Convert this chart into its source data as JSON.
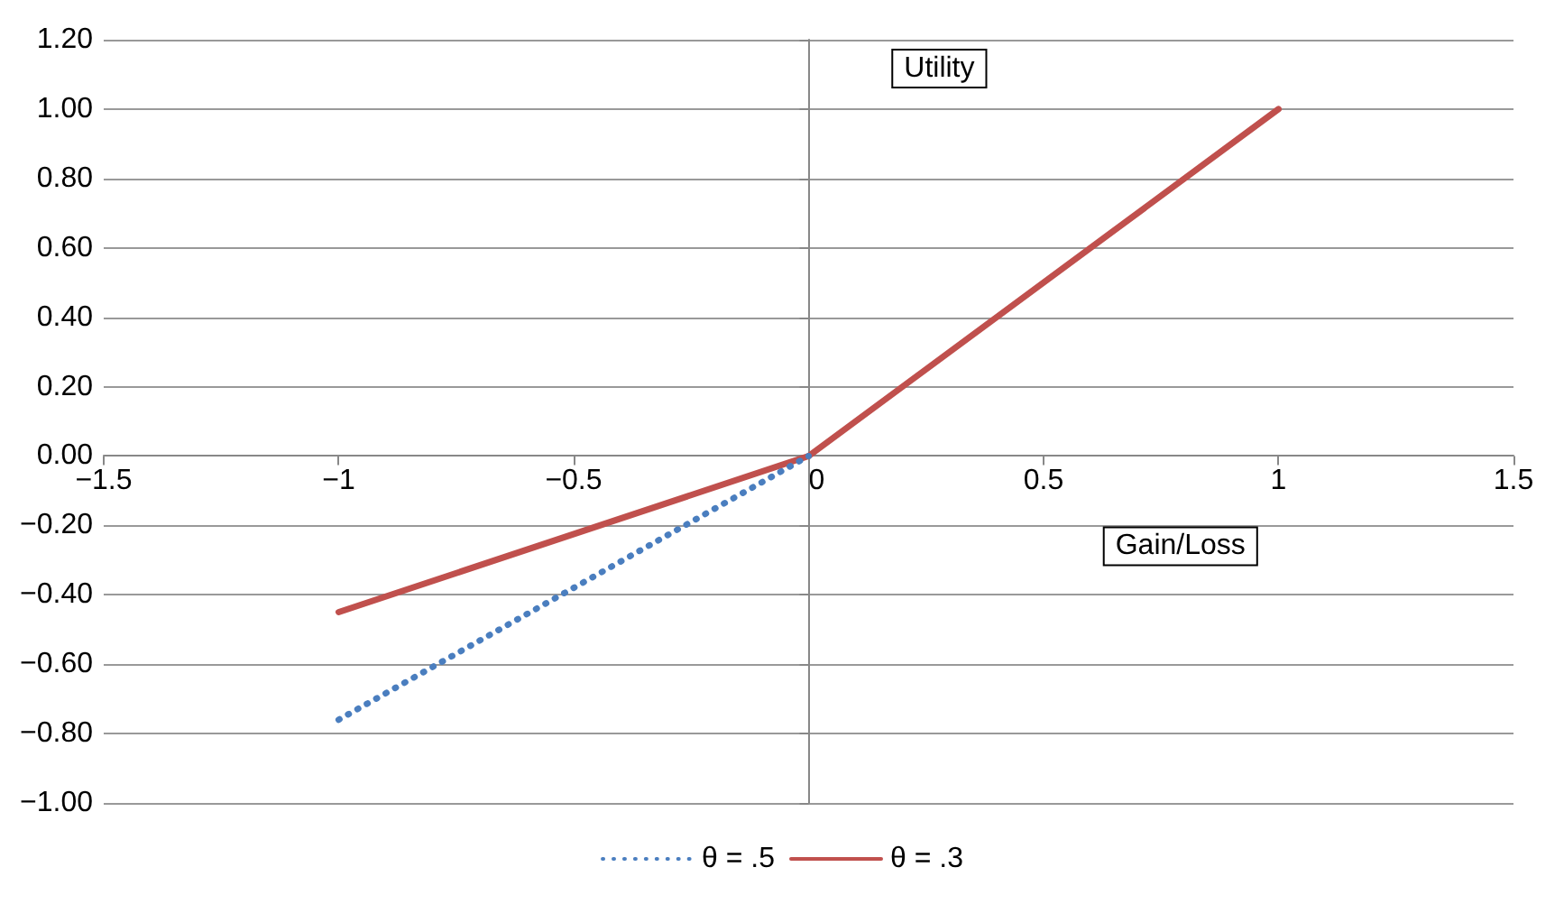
{
  "chart_data": {
    "type": "line",
    "xlabel": "Gain/Loss",
    "ylabel": "Utility",
    "xlim": [
      -1.5,
      1.5
    ],
    "ylim": [
      -1,
      1.2
    ],
    "xticks": [
      {
        "value": -1.5,
        "label": "−1.5"
      },
      {
        "value": -1,
        "label": "−1"
      },
      {
        "value": -0.5,
        "label": "−0.5"
      },
      0,
      0.5,
      1,
      1.5
    ],
    "yticks": [
      {
        "value": -1,
        "label": "−1.00"
      },
      {
        "value": -0.8,
        "label": "−0.80"
      },
      {
        "value": -0.6,
        "label": "−0.60"
      },
      {
        "value": -0.4,
        "label": "−0.40"
      },
      {
        "value": -0.2,
        "label": "−0.20"
      },
      {
        "value": 0,
        "label": "0.00"
      },
      {
        "value": 0.2,
        "label": "0.20"
      },
      {
        "value": 0.4,
        "label": "0.40"
      },
      {
        "value": 0.6,
        "label": "0.60"
      },
      {
        "value": 0.8,
        "label": "0.80"
      },
      {
        "value": 1,
        "label": "1.00"
      },
      {
        "value": 1.2,
        "label": "1.20"
      }
    ],
    "x": [
      -1,
      0,
      1
    ],
    "series": [
      {
        "name": "θ = .5",
        "color": "#4a7ebf",
        "values": [
          -0.76,
          0,
          null
        ],
        "line_style": "dotted"
      },
      {
        "name": "θ = .3",
        "color": "#c0504d",
        "values": [
          -0.45,
          0,
          1
        ],
        "line_style": "solid"
      }
    ],
    "grid": "y",
    "legend": "bottom",
    "marker": "none"
  }
}
